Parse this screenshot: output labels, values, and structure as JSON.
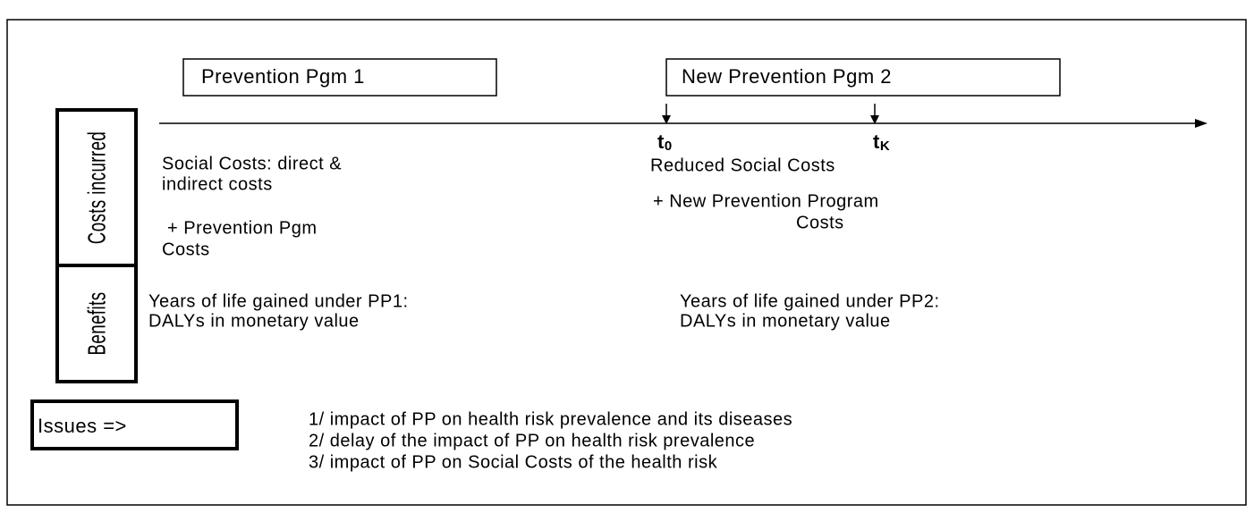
{
  "programs": [
    "Prevention Pgm 1",
    "New Prevention Pgm 2"
  ],
  "rows": [
    "Costs incurred",
    "Benefits"
  ],
  "time_marks": [
    {
      "base": "t",
      "sub": "0"
    },
    {
      "base": "t",
      "sub": "K"
    }
  ],
  "costs": {
    "pgm1": [
      "Social Costs: direct &",
      "indirect costs",
      "+ Prevention Pgm",
      "Costs"
    ],
    "pgm2": [
      "Reduced Social Costs",
      "+ New Prevention Program",
      "Costs"
    ]
  },
  "benefits": {
    "pgm1": [
      "Years of life gained under PP1:",
      "DALYs in monetary value"
    ],
    "pgm2": [
      "Years of life gained under PP2:",
      "DALYs in monetary value"
    ]
  },
  "issues": {
    "label": "Issues =>",
    "items": [
      "1/ impact of PP on health risk prevalence and its diseases",
      "2/ delay of the impact of PP on health risk prevalence",
      "3/ impact of PP on Social Costs of the health risk"
    ]
  }
}
